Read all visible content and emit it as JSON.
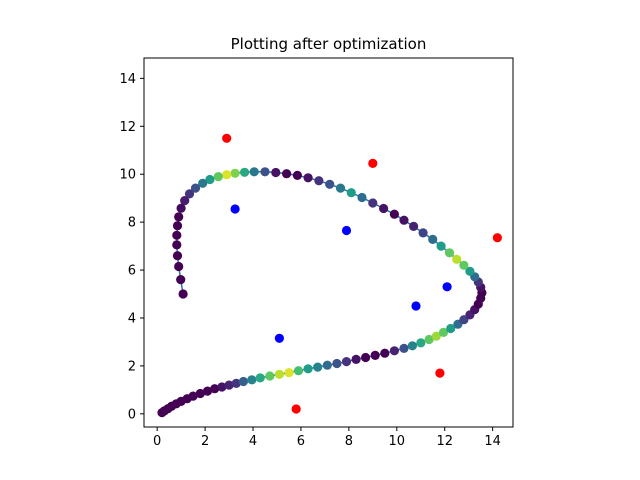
{
  "chart_data": {
    "type": "scatter",
    "title": "Plotting after optimization",
    "xlabel": "",
    "ylabel": "",
    "xlim": [
      -0.55,
      14.85
    ],
    "ylim": [
      -0.55,
      14.85
    ],
    "x_ticks": [
      0,
      2,
      4,
      6,
      8,
      10,
      12,
      14
    ],
    "y_ticks": [
      0,
      2,
      4,
      6,
      8,
      10,
      12,
      14
    ],
    "grid": false,
    "colormap": "viridis",
    "colormap_stops": [
      "#440154",
      "#482777",
      "#3e4a89",
      "#31688e",
      "#26828e",
      "#1f9e89",
      "#35b779",
      "#6ece58",
      "#b5de2b",
      "#fde725"
    ],
    "path_line_color": "#1f77b4",
    "series": [
      {
        "marker_color": "#ff0000",
        "points": [
          [
            2.9,
            11.5
          ],
          [
            9.0,
            10.45
          ],
          [
            14.2,
            7.35
          ],
          [
            11.8,
            1.7
          ],
          [
            5.8,
            0.2
          ]
        ]
      },
      {
        "marker_color": "#0000ff",
        "points": [
          [
            3.25,
            8.55
          ],
          [
            7.9,
            7.65
          ],
          [
            12.1,
            5.3
          ],
          [
            10.8,
            4.5
          ],
          [
            5.1,
            3.15
          ]
        ]
      },
      {
        "colored_by": "viridis",
        "points": [
          [
            0.2,
            0.05,
            0.0
          ],
          [
            0.3,
            0.12,
            0.0
          ],
          [
            0.45,
            0.22,
            0.0
          ],
          [
            0.6,
            0.32,
            0.0
          ],
          [
            0.8,
            0.42,
            0.0
          ],
          [
            1.0,
            0.52,
            0.0
          ],
          [
            1.25,
            0.63,
            0.0
          ],
          [
            1.5,
            0.74,
            0.0
          ],
          [
            1.8,
            0.85,
            0.0
          ],
          [
            2.1,
            0.95,
            0.0
          ],
          [
            2.4,
            1.05,
            0.0
          ],
          [
            2.7,
            1.12,
            0.05
          ],
          [
            3.0,
            1.2,
            0.1
          ],
          [
            3.3,
            1.27,
            0.15
          ],
          [
            3.6,
            1.35,
            0.3
          ],
          [
            3.95,
            1.42,
            0.45
          ],
          [
            4.3,
            1.5,
            0.6
          ],
          [
            4.7,
            1.58,
            0.75
          ],
          [
            5.1,
            1.65,
            0.9
          ],
          [
            5.5,
            1.72,
            0.95
          ],
          [
            5.9,
            1.8,
            0.7
          ],
          [
            6.3,
            1.88,
            0.55
          ],
          [
            6.7,
            1.95,
            0.45
          ],
          [
            7.1,
            2.03,
            0.35
          ],
          [
            7.5,
            2.1,
            0.25
          ],
          [
            7.9,
            2.18,
            0.15
          ],
          [
            8.3,
            2.27,
            0.05
          ],
          [
            8.7,
            2.35,
            0.0
          ],
          [
            9.1,
            2.44,
            0.0
          ],
          [
            9.5,
            2.53,
            0.0
          ],
          [
            9.9,
            2.63,
            0.1
          ],
          [
            10.3,
            2.73,
            0.25
          ],
          [
            10.65,
            2.84,
            0.45
          ],
          [
            11.0,
            2.96,
            0.6
          ],
          [
            11.35,
            3.1,
            0.75
          ],
          [
            11.65,
            3.24,
            0.85
          ],
          [
            11.95,
            3.4,
            0.75
          ],
          [
            12.25,
            3.56,
            0.55
          ],
          [
            12.55,
            3.74,
            0.35
          ],
          [
            12.8,
            3.93,
            0.2
          ],
          [
            13.05,
            4.13,
            0.1
          ],
          [
            13.25,
            4.35,
            0.05
          ],
          [
            13.4,
            4.58,
            0.0
          ],
          [
            13.5,
            4.82,
            0.0
          ],
          [
            13.55,
            5.05,
            0.0
          ],
          [
            13.5,
            5.28,
            0.05
          ],
          [
            13.4,
            5.5,
            0.15
          ],
          [
            13.25,
            5.72,
            0.35
          ],
          [
            13.05,
            5.95,
            0.55
          ],
          [
            12.8,
            6.2,
            0.75
          ],
          [
            12.5,
            6.45,
            0.9
          ],
          [
            12.2,
            6.72,
            0.75
          ],
          [
            11.85,
            7.0,
            0.55
          ],
          [
            11.5,
            7.28,
            0.35
          ],
          [
            11.1,
            7.55,
            0.2
          ],
          [
            10.7,
            7.82,
            0.1
          ],
          [
            10.3,
            8.08,
            0.05
          ],
          [
            9.9,
            8.33,
            0.0
          ],
          [
            9.45,
            8.57,
            0.05
          ],
          [
            9.0,
            8.8,
            0.15
          ],
          [
            8.55,
            9.03,
            0.35
          ],
          [
            8.1,
            9.23,
            0.55
          ],
          [
            7.65,
            9.42,
            0.4
          ],
          [
            7.2,
            9.58,
            0.25
          ],
          [
            6.75,
            9.73,
            0.15
          ],
          [
            6.3,
            9.85,
            0.05
          ],
          [
            5.85,
            9.95,
            0.0
          ],
          [
            5.4,
            10.02,
            0.0
          ],
          [
            4.95,
            10.07,
            0.05
          ],
          [
            4.5,
            10.1,
            0.25
          ],
          [
            4.05,
            10.1,
            0.4
          ],
          [
            3.65,
            10.08,
            0.6
          ],
          [
            3.25,
            10.04,
            0.8
          ],
          [
            2.9,
            9.98,
            0.95
          ],
          [
            2.55,
            9.9,
            0.75
          ],
          [
            2.2,
            9.78,
            0.55
          ],
          [
            1.9,
            9.62,
            0.4
          ],
          [
            1.6,
            9.42,
            0.25
          ],
          [
            1.35,
            9.18,
            0.15
          ],
          [
            1.15,
            8.9,
            0.08
          ],
          [
            1.0,
            8.58,
            0.03
          ],
          [
            0.9,
            8.22,
            0.0
          ],
          [
            0.85,
            7.85,
            0.0
          ],
          [
            0.82,
            7.45,
            0.0
          ],
          [
            0.82,
            7.05,
            0.0
          ],
          [
            0.85,
            6.6,
            0.0
          ],
          [
            0.9,
            6.15,
            0.0
          ],
          [
            0.98,
            5.6,
            0.0
          ],
          [
            1.08,
            5.0,
            0.0
          ]
        ]
      }
    ]
  }
}
